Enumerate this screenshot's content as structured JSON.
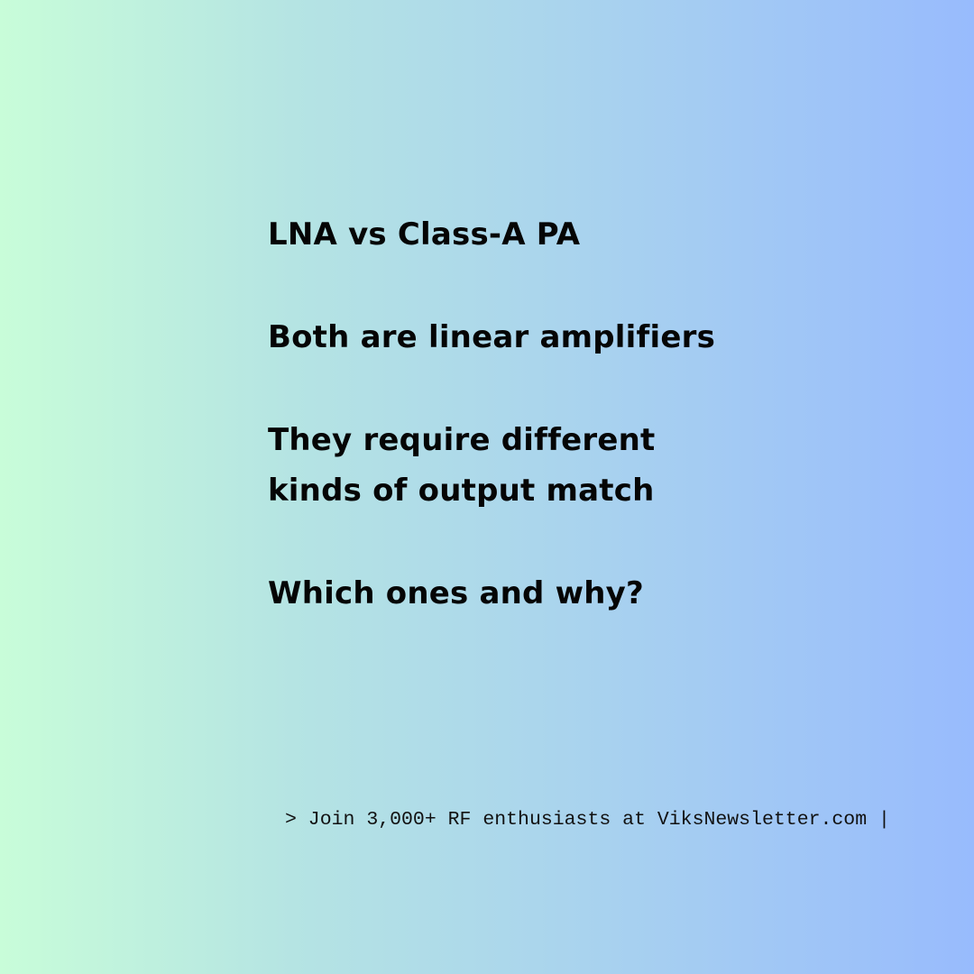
{
  "content": {
    "title": "LNA vs Class-A PA",
    "statement": "Both are linear amplifiers",
    "line_3a": "They require different",
    "line_3b": "kinds of output match",
    "question": "Which ones and why?"
  },
  "footer": {
    "text": "> Join 3,000+ RF enthusiasts at ViksNewsletter.com |"
  },
  "colors": {
    "gradient_left": "#c8fdd9",
    "gradient_right": "#98bbfd",
    "text": "#050505"
  }
}
